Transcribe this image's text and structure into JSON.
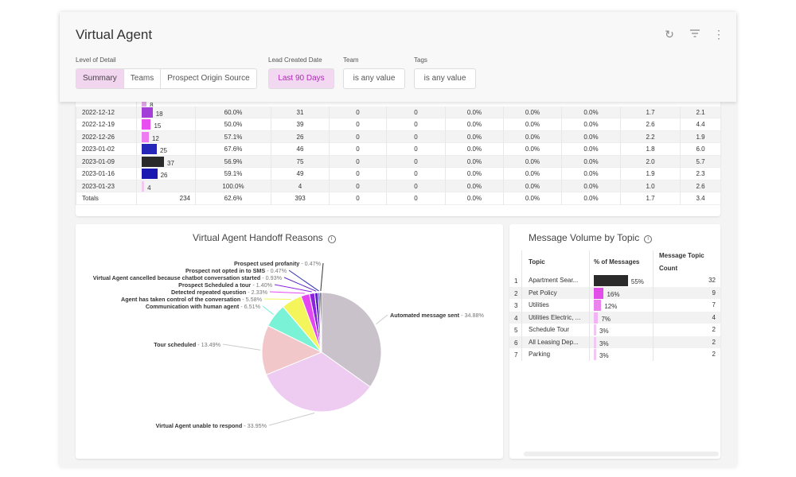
{
  "header": {
    "title": "Virtual Agent",
    "icons": [
      "refresh-icon",
      "filter-icon",
      "more-vertical-icon"
    ],
    "level_label": "Level of Detail",
    "levels": [
      "Summary",
      "Teams",
      "Prospect Origin Source"
    ],
    "date_label": "Lead Created Date",
    "date_value": "Last 90 Days",
    "team_label": "Team",
    "team_value": "is any value",
    "tags_label": "Tags",
    "tags_value": "is any value"
  },
  "table": {
    "rows": [
      {
        "date": "2022-12-12",
        "count": "18",
        "c1": "60.0%",
        "c2": "31",
        "c3": "0",
        "c4": "0",
        "c5": "0.0%",
        "c6": "0.0%",
        "c7": "0.0%",
        "c8": "1.7",
        "c9": "2.1",
        "color": "#a33fd6",
        "frac": 0.49
      },
      {
        "date": "2022-12-19",
        "count": "15",
        "c1": "50.0%",
        "c2": "39",
        "c3": "0",
        "c4": "0",
        "c5": "0.0%",
        "c6": "0.0%",
        "c7": "0.0%",
        "c8": "2.6",
        "c9": "4.4",
        "color": "#e84ef0",
        "frac": 0.41
      },
      {
        "date": "2022-12-26",
        "count": "12",
        "c1": "57.1%",
        "c2": "26",
        "c3": "0",
        "c4": "0",
        "c5": "0.0%",
        "c6": "0.0%",
        "c7": "0.0%",
        "c8": "2.2",
        "c9": "1.9",
        "color": "#ec7cf0",
        "frac": 0.32
      },
      {
        "date": "2023-01-02",
        "count": "25",
        "c1": "67.6%",
        "c2": "46",
        "c3": "0",
        "c4": "0",
        "c5": "0.0%",
        "c6": "0.0%",
        "c7": "0.0%",
        "c8": "1.8",
        "c9": "6.0",
        "color": "#2626b8",
        "frac": 0.68
      },
      {
        "date": "2023-01-09",
        "count": "37",
        "c1": "56.9%",
        "c2": "75",
        "c3": "0",
        "c4": "0",
        "c5": "0.0%",
        "c6": "0.0%",
        "c7": "0.0%",
        "c8": "2.0",
        "c9": "5.7",
        "color": "#2a2a2a",
        "frac": 1.0
      },
      {
        "date": "2023-01-16",
        "count": "26",
        "c1": "59.1%",
        "c2": "49",
        "c3": "0",
        "c4": "0",
        "c5": "0.0%",
        "c6": "0.0%",
        "c7": "0.0%",
        "c8": "1.9",
        "c9": "2.3",
        "color": "#1a1ab0",
        "frac": 0.7
      },
      {
        "date": "2023-01-23",
        "count": "4",
        "c1": "100.0%",
        "c2": "4",
        "c3": "0",
        "c4": "0",
        "c5": "0.0%",
        "c6": "0.0%",
        "c7": "0.0%",
        "c8": "1.0",
        "c9": "2.6",
        "color": "#f0c8f0",
        "frac": 0.11
      }
    ],
    "partial_row": {
      "count": "8",
      "color": "#e2a6e8",
      "frac": 0.22
    },
    "totals": {
      "date": "Totals",
      "count": "234",
      "c1": "62.6%",
      "c2": "393",
      "c3": "0",
      "c4": "0",
      "c5": "0.0%",
      "c6": "0.0%",
      "c7": "0.0%",
      "c8": "1.7",
      "c9": "3.4"
    }
  },
  "pie": {
    "title": "Virtual Agent Handoff Reasons",
    "chart_data": {
      "type": "pie",
      "title": "Virtual Agent Handoff Reasons",
      "slices": [
        {
          "label": "Automated message sent",
          "value": 34.88,
          "pct": "34.88%",
          "color": "#c9c2cb"
        },
        {
          "label": "Virtual Agent unable to respond",
          "value": 33.95,
          "pct": "33.95%",
          "color": "#eecbf1"
        },
        {
          "label": "Tour scheduled",
          "value": 13.49,
          "pct": "13.49%",
          "color": "#f1c7c9"
        },
        {
          "label": "Communication with human agent",
          "value": 6.51,
          "pct": "6.51%",
          "color": "#7af2d6"
        },
        {
          "label": "Agent has taken control of the conversation",
          "value": 5.58,
          "pct": "5.58%",
          "color": "#f4f55b"
        },
        {
          "label": "Detected repeated question",
          "value": 2.33,
          "pct": "2.33%",
          "color": "#e447f2"
        },
        {
          "label": "Prospect Scheduled a tour",
          "value": 1.4,
          "pct": "1.40%",
          "color": "#8b22de"
        },
        {
          "label": "Virtual Agent cancelled because chatbot conversation started",
          "value": 0.93,
          "pct": "0.93%",
          "color": "#5a22c8"
        },
        {
          "label": "Prospect not opted in to SMS",
          "value": 0.47,
          "pct": "0.47%",
          "color": "#2b2bb5"
        },
        {
          "label": "Prospect used profanity",
          "value": 0.47,
          "pct": "0.47%",
          "color": "#333333"
        }
      ]
    }
  },
  "topics": {
    "title": "Message Volume by Topic",
    "headers": [
      "Topic",
      "% of Messages",
      "Message Topic",
      "Count"
    ],
    "rows": [
      {
        "i": "1",
        "topic": "Apartment Sear...",
        "pct": "55%",
        "count": "32",
        "frac": 0.55,
        "color": "#2a2a2a"
      },
      {
        "i": "2",
        "topic": "Pet Policy",
        "pct": "16%",
        "count": "9",
        "frac": 0.16,
        "color": "#e24ee8"
      },
      {
        "i": "3",
        "topic": "Utilities",
        "pct": "12%",
        "count": "7",
        "frac": 0.12,
        "color": "#eb82ee"
      },
      {
        "i": "4",
        "topic": "Utilities Electric, ...",
        "pct": "7%",
        "count": "4",
        "frac": 0.07,
        "color": "#f0b5f2"
      },
      {
        "i": "5",
        "topic": "Schedule Tour",
        "pct": "3%",
        "count": "2",
        "frac": 0.03,
        "color": "#f2c8f2"
      },
      {
        "i": "6",
        "topic": "All Leasing Dep...",
        "pct": "3%",
        "count": "2",
        "frac": 0.03,
        "color": "#f2c8f2"
      },
      {
        "i": "7",
        "topic": "Parking",
        "pct": "3%",
        "count": "2",
        "frac": 0.03,
        "color": "#f2c8f2"
      }
    ]
  }
}
